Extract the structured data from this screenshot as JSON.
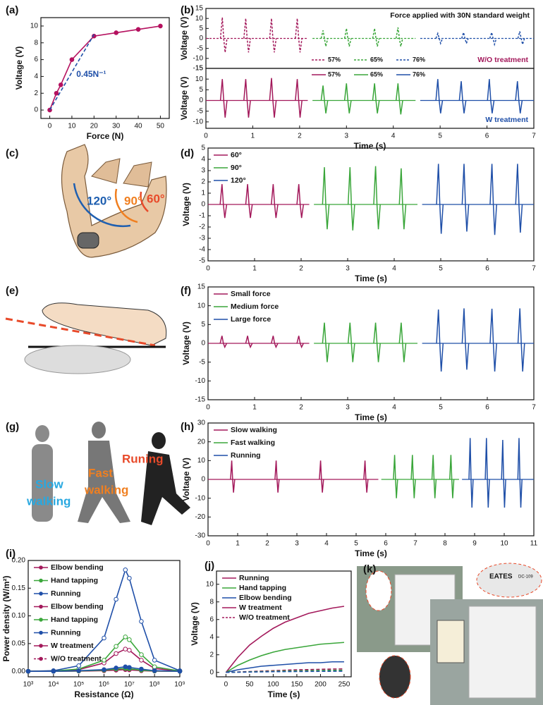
{
  "chart_data": [
    {
      "panel": "(a)",
      "type": "line",
      "xlabel": "Force (N)",
      "ylabel": "Voltage (V)",
      "annotation": "0.45N⁻¹",
      "xlim": [
        -4,
        54
      ],
      "xticks": [
        0,
        10,
        20,
        30,
        40,
        50
      ],
      "ylim": [
        -1,
        11
      ],
      "yticks": [
        0,
        2,
        4,
        6,
        8,
        10
      ],
      "series": [
        {
          "color": "#b5115f",
          "x": [
            0,
            3,
            5,
            10,
            20,
            30,
            40,
            50
          ],
          "values": [
            0,
            2,
            3,
            6,
            8.8,
            9.2,
            9.6,
            10
          ]
        },
        {
          "color": "#1f4fa8",
          "dashed": true,
          "markers": false,
          "x": [
            0,
            20
          ],
          "values": [
            0,
            9
          ]
        }
      ]
    },
    {
      "panel": "(b)",
      "type": "signal",
      "title": "Force applied with 30N standard weight",
      "note": "W/O treatment",
      "ylabel": "Voltage (V)",
      "legend": "bottom-center",
      "xlim": [
        0,
        7
      ],
      "ylim": [
        -15,
        15
      ],
      "yticks": [
        -15,
        -10,
        -5,
        0,
        5,
        10,
        15
      ],
      "series": [
        {
          "name": "57%",
          "color": "#a3195b",
          "dashed": true,
          "x": [
            0.35,
            0.85,
            1.4,
            1.95
          ],
          "values": [
            10.5,
            10,
            10,
            10
          ],
          "lows": [
            -7,
            -7,
            -7,
            -7
          ]
        },
        {
          "name": "65%",
          "color": "#3aa63a",
          "dashed": true,
          "x": [
            2.5,
            3.0,
            3.6,
            4.1
          ],
          "values": [
            4,
            5,
            5,
            5.5
          ],
          "lows": [
            -4,
            -4,
            -4,
            -4
          ]
        },
        {
          "name": "76%",
          "color": "#1f4fa8",
          "dashed": true,
          "x": [
            4.95,
            5.5,
            6.1,
            6.7
          ],
          "values": [
            2.5,
            3,
            3,
            3.5
          ],
          "lows": [
            -2.5,
            -2.5,
            -3,
            -3
          ]
        }
      ]
    },
    {
      "type": "signal",
      "note": "W treatment",
      "xlabel": "Time (s)",
      "ylabel": "Voltage (V)",
      "legend": "top-center",
      "xlim": [
        0,
        7
      ],
      "xticks": [
        0,
        1,
        2,
        3,
        4,
        5,
        6,
        7
      ],
      "ylim": [
        -13,
        15
      ],
      "yticks": [
        -10,
        -5,
        0,
        5,
        10,
        15
      ],
      "series": [
        {
          "name": "57%",
          "color": "#a3195b",
          "x": [
            0.35,
            0.85,
            1.4,
            1.95
          ],
          "values": [
            10,
            10,
            10.5,
            10
          ],
          "lows": [
            -8,
            -8,
            -8,
            -8
          ]
        },
        {
          "name": "65%",
          "color": "#3aa63a",
          "x": [
            2.5,
            3.0,
            3.6,
            4.1
          ],
          "values": [
            7,
            8,
            8,
            8
          ],
          "lows": [
            -6,
            -6,
            -6,
            -6.5
          ]
        },
        {
          "name": "76%",
          "color": "#1f4fa8",
          "x": [
            4.95,
            5.45,
            6.05,
            6.65
          ],
          "values": [
            10,
            9,
            10,
            9
          ],
          "lows": [
            -6,
            -6,
            -6,
            -6
          ]
        }
      ]
    },
    {
      "panel": "(d)",
      "type": "signal",
      "xlabel": "Time (s)",
      "ylabel": "Voltage (V)",
      "legend": "top-left",
      "xlim": [
        0,
        7
      ],
      "xticks": [
        0,
        1,
        2,
        3,
        4,
        5,
        6,
        7
      ],
      "ylim": [
        -5,
        5
      ],
      "yticks": [
        -5,
        -4,
        -3,
        -2,
        -1,
        0,
        1,
        2,
        3,
        4,
        5
      ],
      "series": [
        {
          "name": "60°",
          "color": "#a3195b",
          "x": [
            0.3,
            0.85,
            1.4,
            1.95
          ],
          "values": [
            1.8,
            1.8,
            1.8,
            1.8
          ],
          "lows": [
            -1.2,
            -1.2,
            -1.2,
            -1.2
          ]
        },
        {
          "name": "90°",
          "color": "#3aa63a",
          "x": [
            2.5,
            3.05,
            3.6,
            4.15
          ],
          "values": [
            3.3,
            3.3,
            3.4,
            3.2
          ],
          "lows": [
            -2.2,
            -2.3,
            -2.2,
            -2.2
          ]
        },
        {
          "name": "120°",
          "color": "#1f4fa8",
          "x": [
            4.95,
            5.5,
            6.1,
            6.65
          ],
          "values": [
            3.6,
            3.6,
            3.6,
            3.6
          ],
          "lows": [
            -2.6,
            -2.4,
            -2.7,
            -2.5
          ]
        }
      ]
    },
    {
      "panel": "(f)",
      "type": "signal",
      "xlabel": "Time (s)",
      "ylabel": "Voltage (V)",
      "legend": "top-left",
      "xlim": [
        0,
        7
      ],
      "xticks": [
        0,
        1,
        2,
        3,
        4,
        5,
        6,
        7
      ],
      "ylim": [
        -15,
        15
      ],
      "yticks": [
        -15,
        -10,
        -5,
        0,
        5,
        10,
        15
      ],
      "series": [
        {
          "name": "Small force",
          "color": "#a3195b",
          "x": [
            0.3,
            0.85,
            1.4,
            1.95
          ],
          "values": [
            2,
            2,
            2,
            2
          ],
          "lows": [
            -1,
            -1,
            -1,
            -1
          ]
        },
        {
          "name": "Medium force",
          "color": "#3aa63a",
          "x": [
            2.5,
            3.05,
            3.6,
            4.15
          ],
          "values": [
            5.5,
            5.5,
            5.5,
            5.5
          ],
          "lows": [
            -5,
            -5,
            -5,
            -5
          ]
        },
        {
          "name": "Large force",
          "color": "#1f4fa8",
          "x": [
            4.95,
            5.5,
            6.1,
            6.7
          ],
          "values": [
            9,
            9.3,
            9.2,
            9.3
          ],
          "lows": [
            -7.5,
            -7,
            -7.5,
            -7.5
          ]
        }
      ]
    },
    {
      "panel": "(h)",
      "type": "signal",
      "xlabel": "Time (s)",
      "ylabel": "Voltage (V)",
      "legend": "top-left",
      "xlim": [
        0,
        11
      ],
      "xticks": [
        0,
        1,
        2,
        3,
        4,
        5,
        6,
        7,
        8,
        9,
        10,
        11
      ],
      "ylim": [
        -30,
        30
      ],
      "yticks": [
        -30,
        -20,
        -10,
        0,
        10,
        20,
        30
      ],
      "series": [
        {
          "name": "Slow walking",
          "color": "#a3195b",
          "x": [
            0.8,
            2.3,
            3.8,
            5.3
          ],
          "values": [
            10,
            10,
            10,
            10
          ],
          "lows": [
            -7,
            -7,
            -7,
            -7
          ]
        },
        {
          "name": "Fast walking",
          "color": "#3aa63a",
          "x": [
            6.3,
            6.9,
            7.6,
            8.2
          ],
          "values": [
            13,
            13,
            13,
            13
          ],
          "lows": [
            -10,
            -10,
            -10,
            -10
          ]
        },
        {
          "name": "Running",
          "color": "#1f4fa8",
          "x": [
            8.85,
            9.4,
            9.95,
            10.5
          ],
          "values": [
            22,
            22,
            21,
            22
          ],
          "lows": [
            -15,
            -15,
            -15,
            -15
          ]
        }
      ]
    },
    {
      "panel": "(i)",
      "type": "line",
      "log_x": true,
      "xlabel": "Resistance (Ω)",
      "ylabel": "Power density (W/m²)",
      "legend": "top-left",
      "legend_notes": [
        "W treatment",
        "W/O treatment"
      ],
      "xlim": [
        1000,
        1000000000
      ],
      "xticks": [
        {
          "value": 1000,
          "label": "10³"
        },
        {
          "value": 10000,
          "label": "10⁴"
        },
        {
          "value": 100000,
          "label": "10⁵"
        },
        {
          "value": 1000000,
          "label": "10⁶"
        },
        {
          "value": 10000000,
          "label": "10⁷"
        },
        {
          "value": 100000000,
          "label": "10⁸"
        },
        {
          "value": 1000000000,
          "label": "10⁹"
        }
      ],
      "ylim": [
        -0.01,
        0.2
      ],
      "yticks": [
        {
          "value": 0,
          "label": "0.00"
        },
        {
          "value": 0.05,
          "label": "0.05"
        },
        {
          "value": 0.1,
          "label": "0.10"
        },
        {
          "value": 0.15,
          "label": "0.15"
        },
        {
          "value": 0.2,
          "label": "0.20"
        }
      ],
      "x": [
        1000,
        10000,
        100000,
        1000000,
        3000000,
        7000000,
        10000000,
        30000000,
        100000000,
        1000000000
      ],
      "series": [
        {
          "name": "Elbow bending",
          "color": "#a3195b",
          "values": [
            0,
            0.0005,
            0.003,
            0.015,
            0.032,
            0.04,
            0.038,
            0.02,
            0.005,
            0.0003
          ]
        },
        {
          "name": "Hand tapping",
          "color": "#3aa63a",
          "values": [
            0,
            0.0005,
            0.004,
            0.02,
            0.045,
            0.062,
            0.057,
            0.03,
            0.008,
            0.0005
          ]
        },
        {
          "name": "Running",
          "color": "#1f4fa8",
          "values": [
            0,
            0.001,
            0.01,
            0.06,
            0.13,
            0.183,
            0.168,
            0.09,
            0.02,
            0.001
          ]
        },
        {
          "name": "Elbow bending",
          "color": "#a3195b",
          "values": [
            0,
            0,
            0.0003,
            0.001,
            0.002,
            0.003,
            0.0025,
            0.001,
            0.0003,
            0
          ]
        },
        {
          "name": "Hand tapping",
          "color": "#3aa63a",
          "values": [
            0,
            0,
            0.0005,
            0.002,
            0.004,
            0.005,
            0.0045,
            0.002,
            0.0005,
            0
          ]
        },
        {
          "name": "Running",
          "color": "#1f4fa8",
          "values": [
            0,
            0,
            0.001,
            0.003,
            0.006,
            0.008,
            0.007,
            0.004,
            0.001,
            0
          ]
        }
      ]
    },
    {
      "panel": "(j)",
      "type": "line",
      "xlabel": "Time (s)",
      "ylabel": "Voltage (V)",
      "legend": "top-left",
      "legend_notes": [
        "W treatment",
        "W/O treatment"
      ],
      "xlim": [
        -20,
        265
      ],
      "xticks": [
        0,
        50,
        100,
        150,
        200,
        250
      ],
      "ylim": [
        -0.5,
        11.5
      ],
      "yticks": [
        0,
        2,
        4,
        6,
        8,
        10
      ],
      "x": [
        0,
        25,
        50,
        75,
        100,
        125,
        150,
        175,
        200,
        225,
        250
      ],
      "series": [
        {
          "name": "Running",
          "color": "#a3195b",
          "markers": false,
          "values": [
            0,
            1.7,
            3.1,
            4.1,
            5.0,
            5.7,
            6.2,
            6.7,
            7.0,
            7.3,
            7.5
          ]
        },
        {
          "name": "Hand tapping",
          "color": "#3aa63a",
          "markers": false,
          "values": [
            0,
            0.8,
            1.4,
            1.9,
            2.3,
            2.6,
            2.8,
            3.0,
            3.2,
            3.3,
            3.4
          ]
        },
        {
          "name": "Elbow bending",
          "color": "#1f4fa8",
          "markers": false,
          "values": [
            0,
            0.3,
            0.5,
            0.7,
            0.8,
            0.9,
            1.0,
            1.1,
            1.1,
            1.2,
            1.2
          ]
        },
        {
          "color": "#a3195b",
          "markers": false,
          "dashed": true,
          "values": [
            0,
            0.05,
            0.1,
            0.15,
            0.2,
            0.25,
            0.3,
            0.32,
            0.35,
            0.38,
            0.4
          ]
        },
        {
          "color": "#3aa63a",
          "markers": false,
          "dashed": true,
          "values": [
            0,
            0.03,
            0.07,
            0.1,
            0.13,
            0.16,
            0.18,
            0.2,
            0.22,
            0.24,
            0.25
          ]
        },
        {
          "color": "#1f4fa8",
          "markers": false,
          "dashed": true,
          "values": [
            0,
            0.02,
            0.04,
            0.06,
            0.08,
            0.09,
            0.1,
            0.11,
            0.12,
            0.13,
            0.14
          ]
        }
      ]
    }
  ],
  "images": {
    "c": {
      "panel": "(c)",
      "labels": [
        "120°",
        "90°",
        "60°"
      ]
    },
    "e": {
      "panel": "(e)"
    },
    "g": {
      "panel": "(g)",
      "slow": [
        "Slow",
        "walking"
      ],
      "fast": [
        "Fast",
        "walking"
      ],
      "run": "Runing"
    },
    "k": {
      "panel": "(k)",
      "brand": "EATES",
      "model": "DC-109"
    }
  }
}
